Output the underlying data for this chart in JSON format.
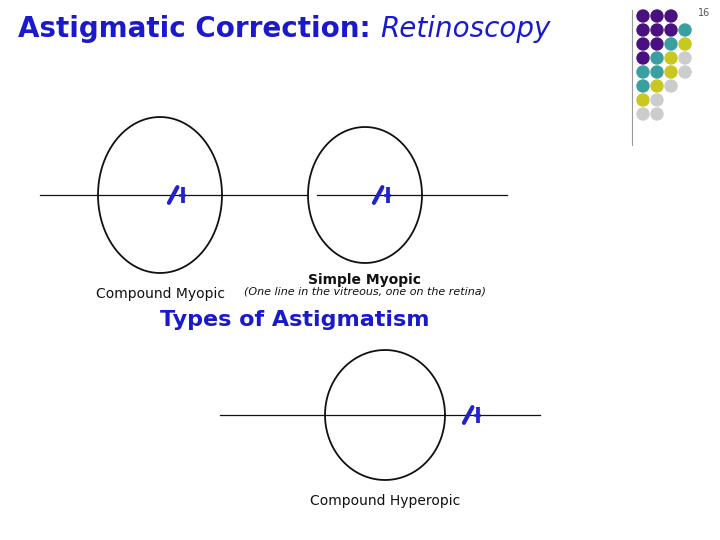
{
  "title_bold": "Astigmatic Correction: ",
  "title_italic": "Retinoscopy",
  "title_color": "#1a1acc",
  "title_bold_fontsize": 20,
  "title_italic_fontsize": 20,
  "background_color": "#ffffff",
  "slide_number": "16",
  "types_heading": "Types of Astigmatism",
  "types_color": "#1a1acc",
  "types_fontsize": 16,
  "compound_myopic_label": "Compound Myopic",
  "simple_myopic_label": "Simple Myopic",
  "simple_myopic_sub": "(One line in the vitreous, one on the retina)",
  "compound_hyperopic_label": "Compound Hyperopic",
  "label_fontsize": 10,
  "sub_fontsize": 8,
  "eye_color": "#111111",
  "line_color": "#111111",
  "focus_color": "#2222cc",
  "dot_rows": [
    [
      "#4a1080",
      "#4a1080",
      "#4a1080"
    ],
    [
      "#4a1080",
      "#4a1080",
      "#4a1080",
      "#3a9fa0"
    ],
    [
      "#4a1080",
      "#4a1080",
      "#3a9fa0",
      "#c8c820"
    ],
    [
      "#4a1080",
      "#3a9fa0",
      "#c8c820",
      "#cccccc"
    ],
    [
      "#3a9fa0",
      "#3a9fa0",
      "#c8c820",
      "#cccccc"
    ],
    [
      "#3a9fa0",
      "#c8c820",
      "#cccccc"
    ],
    [
      "#c8c820",
      "#cccccc"
    ],
    [
      "#cccccc",
      "#cccccc"
    ]
  ]
}
